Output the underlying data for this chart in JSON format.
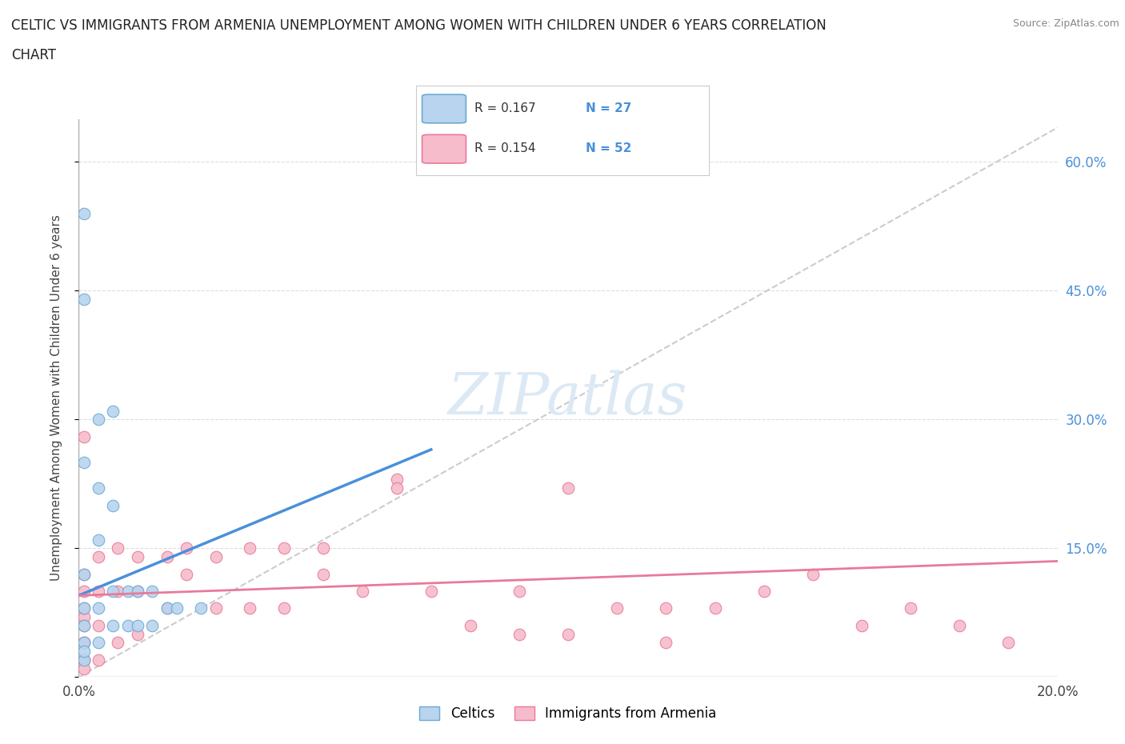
{
  "title_line1": "CELTIC VS IMMIGRANTS FROM ARMENIA UNEMPLOYMENT AMONG WOMEN WITH CHILDREN UNDER 6 YEARS CORRELATION",
  "title_line2": "CHART",
  "source": "Source: ZipAtlas.com",
  "ylabel": "Unemployment Among Women with Children Under 6 years",
  "xlim": [
    0.0,
    0.2
  ],
  "ylim": [
    0.0,
    0.65
  ],
  "xticks": [
    0.0,
    0.05,
    0.1,
    0.15,
    0.2
  ],
  "yticks": [
    0.0,
    0.15,
    0.3,
    0.45,
    0.6
  ],
  "xticklabels": [
    "0.0%",
    "",
    "",
    "",
    "20.0%"
  ],
  "yticklabels_right": [
    "",
    "15.0%",
    "30.0%",
    "45.0%",
    "60.0%"
  ],
  "legend_entries": [
    {
      "label": "Celtics",
      "color": "#b8d4ee",
      "edge": "#6aaad4",
      "R": 0.167,
      "N": 27
    },
    {
      "label": "Immigrants from Armenia",
      "color": "#f7bccb",
      "edge": "#e8799a",
      "R": 0.154,
      "N": 52
    }
  ],
  "celtics_x": [
    0.001,
    0.001,
    0.001,
    0.001,
    0.001,
    0.001,
    0.004,
    0.004,
    0.004,
    0.004,
    0.004,
    0.007,
    0.007,
    0.007,
    0.007,
    0.01,
    0.01,
    0.012,
    0.012,
    0.015,
    0.015,
    0.018,
    0.02,
    0.025,
    0.001,
    0.001,
    0.001
  ],
  "celtics_y": [
    0.54,
    0.44,
    0.08,
    0.06,
    0.04,
    0.02,
    0.3,
    0.22,
    0.16,
    0.08,
    0.04,
    0.31,
    0.2,
    0.1,
    0.06,
    0.1,
    0.06,
    0.1,
    0.06,
    0.1,
    0.06,
    0.08,
    0.08,
    0.08,
    0.25,
    0.12,
    0.03
  ],
  "armenia_x": [
    0.001,
    0.001,
    0.001,
    0.001,
    0.001,
    0.004,
    0.004,
    0.004,
    0.004,
    0.008,
    0.008,
    0.008,
    0.012,
    0.012,
    0.012,
    0.018,
    0.018,
    0.022,
    0.022,
    0.028,
    0.028,
    0.035,
    0.035,
    0.042,
    0.042,
    0.05,
    0.05,
    0.058,
    0.065,
    0.065,
    0.072,
    0.08,
    0.09,
    0.09,
    0.1,
    0.1,
    0.11,
    0.12,
    0.12,
    0.13,
    0.14,
    0.15,
    0.16,
    0.17,
    0.18,
    0.19,
    0.001,
    0.001,
    0.001,
    0.001,
    0.001,
    0.001
  ],
  "armenia_y": [
    0.28,
    0.1,
    0.07,
    0.04,
    0.02,
    0.14,
    0.1,
    0.06,
    0.02,
    0.15,
    0.1,
    0.04,
    0.14,
    0.1,
    0.05,
    0.14,
    0.08,
    0.15,
    0.12,
    0.14,
    0.08,
    0.15,
    0.08,
    0.15,
    0.08,
    0.15,
    0.12,
    0.1,
    0.23,
    0.22,
    0.1,
    0.06,
    0.1,
    0.05,
    0.22,
    0.05,
    0.08,
    0.08,
    0.04,
    0.08,
    0.1,
    0.12,
    0.06,
    0.08,
    0.06,
    0.04,
    0.12,
    0.08,
    0.06,
    0.04,
    0.02,
    0.01
  ],
  "celtic_trend_x": [
    0.0,
    0.072
  ],
  "celtic_trend_y": [
    0.095,
    0.265
  ],
  "armenia_trend_x": [
    0.0,
    0.2
  ],
  "armenia_trend_y": [
    0.095,
    0.135
  ],
  "ref_line_x": [
    0.0,
    0.2
  ],
  "ref_line_y": [
    0.0,
    0.64
  ],
  "celtic_line_color": "#4a90d9",
  "armenia_line_color": "#e87a9a",
  "background_color": "#ffffff",
  "grid_color": "#dddddd",
  "watermark_color": "#dce9f5"
}
